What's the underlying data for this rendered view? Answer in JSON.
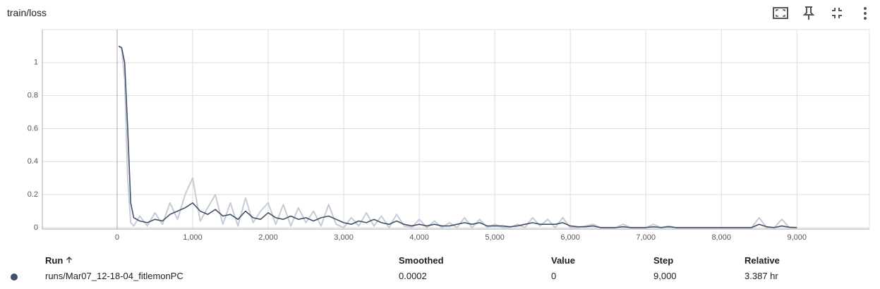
{
  "header": {
    "title": "train/loss"
  },
  "chart_data": {
    "type": "line",
    "x": [
      20,
      60,
      100,
      140,
      180,
      220,
      300,
      400,
      500,
      600,
      700,
      800,
      900,
      1000,
      1100,
      1200,
      1300,
      1400,
      1500,
      1600,
      1700,
      1800,
      1900,
      2000,
      2100,
      2200,
      2300,
      2400,
      2500,
      2600,
      2700,
      2800,
      2900,
      3000,
      3100,
      3200,
      3300,
      3400,
      3500,
      3600,
      3700,
      3800,
      3900,
      4000,
      4100,
      4200,
      4300,
      4400,
      4500,
      4600,
      4700,
      4800,
      4900,
      5000,
      5100,
      5200,
      5300,
      5400,
      5500,
      5600,
      5700,
      5800,
      5900,
      6000,
      6100,
      6200,
      6300,
      6400,
      6500,
      6600,
      6700,
      6800,
      6900,
      7000,
      7100,
      7200,
      7300,
      7400,
      7500,
      7600,
      7700,
      7800,
      7900,
      8000,
      8100,
      8200,
      8300,
      8400,
      8500,
      8600,
      8700,
      8800,
      8900,
      9000
    ],
    "series": [
      {
        "color": "#c5cbd8",
        "values": [
          1.1,
          1.09,
          0.9,
          0.3,
          0.03,
          0.01,
          0.07,
          0.01,
          0.09,
          0.02,
          0.15,
          0.05,
          0.2,
          0.3,
          0.04,
          0.12,
          0.2,
          0.02,
          0.15,
          0.01,
          0.18,
          0.03,
          0.1,
          0.15,
          0.02,
          0.14,
          0.01,
          0.12,
          0.03,
          0.1,
          0.01,
          0.14,
          0.02,
          0.0,
          0.06,
          0.01,
          0.09,
          0.01,
          0.07,
          0.0,
          0.08,
          0.01,
          0.0,
          0.05,
          0.0,
          0.04,
          0.0,
          0.03,
          0.0,
          0.06,
          0.0,
          0.05,
          0.0,
          0.02,
          0.0,
          0.0,
          0.02,
          0.0,
          0.06,
          0.01,
          0.05,
          0.0,
          0.06,
          0.0,
          0.0,
          0.01,
          0.02,
          0.0,
          0.0,
          0.0,
          0.02,
          0.0,
          0.0,
          0.0,
          0.02,
          0.0,
          0.01,
          0.0,
          0.0,
          0.0,
          0.0,
          0.0,
          0.0,
          0.0,
          0.0,
          0.0,
          0.0,
          0.0,
          0.06,
          0.0,
          0.0,
          0.05,
          0.0,
          0
        ]
      },
      {
        "color": "#425066",
        "values": [
          1.1,
          1.09,
          1.0,
          0.6,
          0.15,
          0.06,
          0.04,
          0.03,
          0.05,
          0.04,
          0.08,
          0.1,
          0.12,
          0.15,
          0.1,
          0.08,
          0.11,
          0.07,
          0.08,
          0.05,
          0.1,
          0.06,
          0.05,
          0.09,
          0.06,
          0.05,
          0.07,
          0.05,
          0.06,
          0.04,
          0.06,
          0.07,
          0.05,
          0.03,
          0.02,
          0.04,
          0.03,
          0.05,
          0.03,
          0.02,
          0.04,
          0.02,
          0.01,
          0.02,
          0.01,
          0.02,
          0.01,
          0.01,
          0.02,
          0.03,
          0.02,
          0.03,
          0.01,
          0.01,
          0.01,
          0.005,
          0.01,
          0.02,
          0.03,
          0.02,
          0.02,
          0.02,
          0.03,
          0.01,
          0.005,
          0.005,
          0.01,
          0,
          0,
          0,
          0.005,
          0,
          0,
          0,
          0.005,
          0,
          0.005,
          0,
          0,
          0,
          0,
          0,
          0,
          0,
          0,
          0,
          0,
          0,
          0.02,
          0.005,
          0,
          0.01,
          0.002,
          0.0002
        ]
      }
    ],
    "xlim": [
      -990,
      9960
    ],
    "xticks": [
      0,
      {
        "value": 1000,
        "label": "1,000"
      },
      {
        "value": 2000,
        "label": "2,000"
      },
      {
        "value": 3000,
        "label": "3,000"
      },
      {
        "value": 4000,
        "label": "4,000"
      },
      {
        "value": 5000,
        "label": "5,000"
      },
      {
        "value": 6000,
        "label": "6,000"
      },
      {
        "value": 7000,
        "label": "7,000"
      },
      {
        "value": 8000,
        "label": "8,000"
      },
      {
        "value": 9000,
        "label": "9,000"
      }
    ],
    "ylim": [
      -0.009,
      1.2
    ],
    "yticks": [
      0,
      0.2,
      0.4,
      0.6,
      0.8,
      1
    ],
    "grid": true
  },
  "table": {
    "headers": [
      "Run",
      "Smoothed",
      "Value",
      "Step",
      "Relative"
    ],
    "rows": [
      [
        "runs/Mar07_12-18-04_fitlemonPC",
        "0.0002",
        "0",
        "9,000",
        "3.387 hr"
      ]
    ]
  }
}
